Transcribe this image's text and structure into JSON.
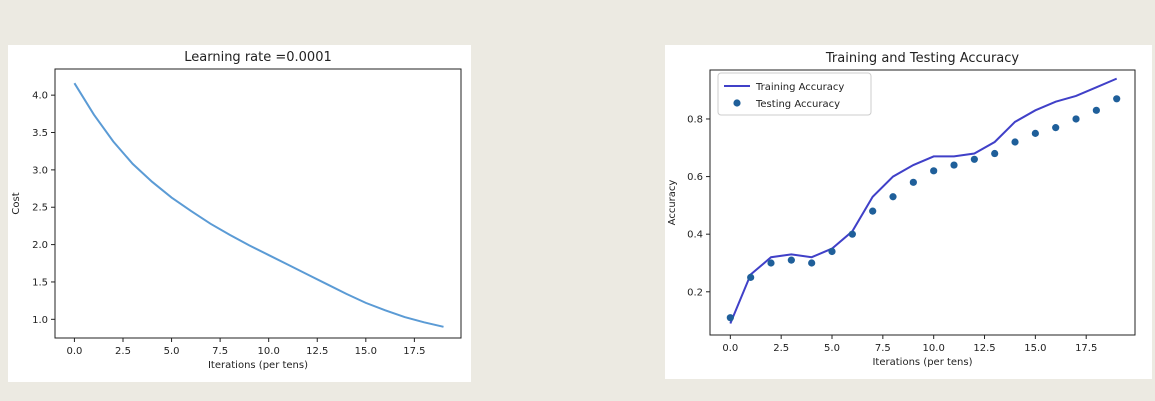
{
  "chart_data": [
    {
      "type": "line",
      "title": "Learning rate =0.0001",
      "xlabel": "Iterations (per tens)",
      "ylabel": "Cost",
      "xlim": [
        -1,
        19.9
      ],
      "ylim": [
        0.75,
        4.35
      ],
      "xticks": [
        0,
        2.5,
        5,
        7.5,
        10,
        12.5,
        15,
        17.5
      ],
      "xtick_labels": [
        "0.0",
        "2.5",
        "5.0",
        "7.5",
        "10.0",
        "12.5",
        "15.0",
        "17.5"
      ],
      "yticks": [
        1.0,
        1.5,
        2.0,
        2.5,
        3.0,
        3.5,
        4.0
      ],
      "ytick_labels": [
        "1.0",
        "1.5",
        "2.0",
        "2.5",
        "3.0",
        "3.5",
        "4.0"
      ],
      "grid": false,
      "series": [
        {
          "color": "#5b9bd5",
          "x": [
            0,
            1,
            2,
            3,
            4,
            5,
            6,
            7,
            8,
            9,
            10,
            11,
            12,
            13,
            14,
            15,
            16,
            17,
            18,
            19
          ],
          "y": [
            4.16,
            3.74,
            3.38,
            3.08,
            2.84,
            2.63,
            2.45,
            2.28,
            2.13,
            1.99,
            1.86,
            1.73,
            1.6,
            1.47,
            1.34,
            1.22,
            1.12,
            1.03,
            0.96,
            0.9
          ]
        }
      ]
    },
    {
      "type": "line",
      "title": "Training and Testing Accuracy",
      "xlabel": "Iterations (per tens)",
      "ylabel": "Accuracy",
      "xlim": [
        -1,
        19.9
      ],
      "ylim": [
        0.05,
        0.97
      ],
      "xticks": [
        0,
        2.5,
        5,
        7.5,
        10,
        12.5,
        15,
        17.5
      ],
      "xtick_labels": [
        "0.0",
        "2.5",
        "5.0",
        "7.5",
        "10.0",
        "12.5",
        "15.0",
        "17.5"
      ],
      "yticks": [
        0.2,
        0.4,
        0.6,
        0.8
      ],
      "ytick_labels": [
        "0.2",
        "0.4",
        "0.6",
        "0.8"
      ],
      "grid": false,
      "legend": "top-left",
      "series": [
        {
          "name": "Training Accuracy",
          "style": "line",
          "color": "#4040c8",
          "x": [
            0,
            1,
            2,
            3,
            4,
            5,
            6,
            7,
            8,
            9,
            10,
            11,
            12,
            13,
            14,
            15,
            16,
            17,
            18,
            19
          ],
          "y": [
            0.09,
            0.26,
            0.32,
            0.33,
            0.32,
            0.35,
            0.41,
            0.53,
            0.6,
            0.64,
            0.67,
            0.67,
            0.68,
            0.72,
            0.79,
            0.83,
            0.86,
            0.88,
            0.91,
            0.94
          ]
        },
        {
          "name": "Testing Accuracy",
          "style": "scatter",
          "color": "#1f5f9a",
          "x": [
            0,
            1,
            2,
            3,
            4,
            5,
            6,
            7,
            8,
            9,
            10,
            11,
            12,
            13,
            14,
            15,
            16,
            17,
            18,
            19
          ],
          "y": [
            0.11,
            0.25,
            0.3,
            0.31,
            0.3,
            0.34,
            0.4,
            0.48,
            0.53,
            0.58,
            0.62,
            0.64,
            0.66,
            0.68,
            0.72,
            0.75,
            0.77,
            0.8,
            0.83,
            0.87
          ]
        }
      ]
    }
  ]
}
